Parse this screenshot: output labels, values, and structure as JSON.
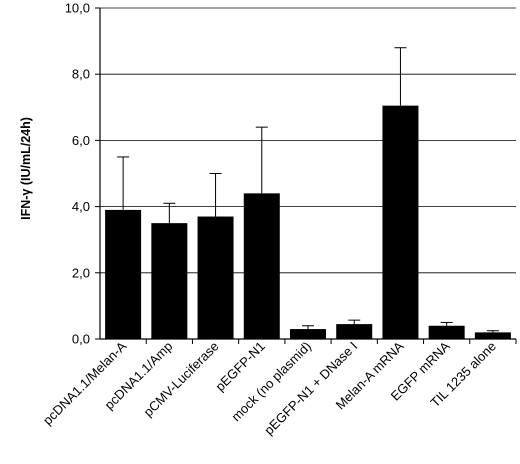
{
  "chart_data": {
    "type": "bar",
    "title": "",
    "xlabel": "",
    "ylabel": "IFN-γ (IU/mL/24h)",
    "ylim": [
      0,
      10
    ],
    "y_ticks": [
      "0,0",
      "2,0",
      "4,0",
      "6,0",
      "8,0",
      "10,0"
    ],
    "y_tick_values": [
      0,
      2,
      4,
      6,
      8,
      10
    ],
    "grid": true,
    "categories": [
      "pcDNA1.1/Melan-A",
      "pcDNA1.1/Amp",
      "pCMV-Luciferase",
      "pEGFP-N1",
      "mock (no plasmid)",
      "pEGFP-N1 + DNase I",
      "Melan-A mRNA",
      "EGFP mRNA",
      "TIL 1235 alone"
    ],
    "values": [
      3.9,
      3.5,
      3.7,
      4.4,
      0.3,
      0.45,
      7.05,
      0.4,
      0.2
    ],
    "errors": [
      1.6,
      0.6,
      1.3,
      2.0,
      0.1,
      0.12,
      1.75,
      0.1,
      0.05
    ],
    "bar_color": "#000000",
    "grid_color": "#000000"
  }
}
